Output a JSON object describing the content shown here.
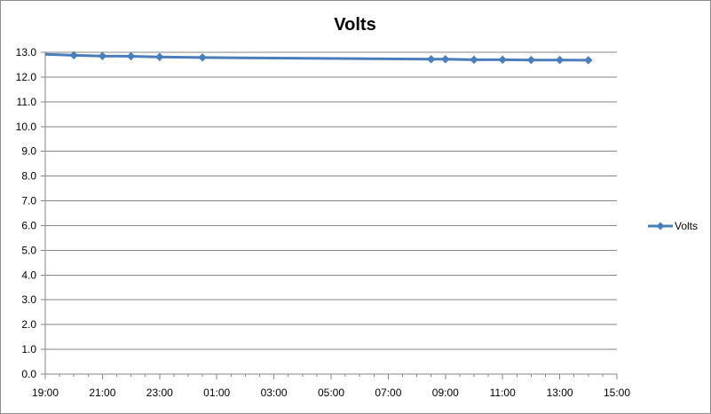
{
  "chart_data": {
    "type": "line",
    "title": "Volts",
    "xlabel": "",
    "ylabel": "",
    "x_ticks": [
      "19:00",
      "21:00",
      "23:00",
      "01:00",
      "03:00",
      "05:00",
      "07:00",
      "09:00",
      "11:00",
      "13:00",
      "15:00"
    ],
    "xlim": [
      "19:00",
      "15:00 (+1 day)"
    ],
    "y_ticks": [
      "0.0",
      "1.0",
      "2.0",
      "3.0",
      "4.0",
      "5.0",
      "6.0",
      "7.0",
      "8.0",
      "9.0",
      "10.0",
      "11.0",
      "12.0",
      "13.0"
    ],
    "ylim": [
      0,
      13
    ],
    "grid": "horizontal",
    "legend": "right",
    "series": [
      {
        "name": "Volts",
        "color": "#4a7ebb",
        "x": [
          "19:00",
          "20:00",
          "21:00",
          "22:00",
          "23:00",
          "00:30",
          "08:30",
          "09:00",
          "10:00",
          "11:00",
          "12:00",
          "13:00",
          "14:00"
        ],
        "values": [
          12.92,
          12.88,
          12.85,
          12.84,
          12.81,
          12.79,
          12.72,
          12.72,
          12.7,
          12.7,
          12.69,
          12.69,
          12.68
        ],
        "markers": [
          false,
          true,
          true,
          true,
          true,
          true,
          true,
          true,
          true,
          true,
          true,
          true,
          true
        ]
      }
    ]
  }
}
